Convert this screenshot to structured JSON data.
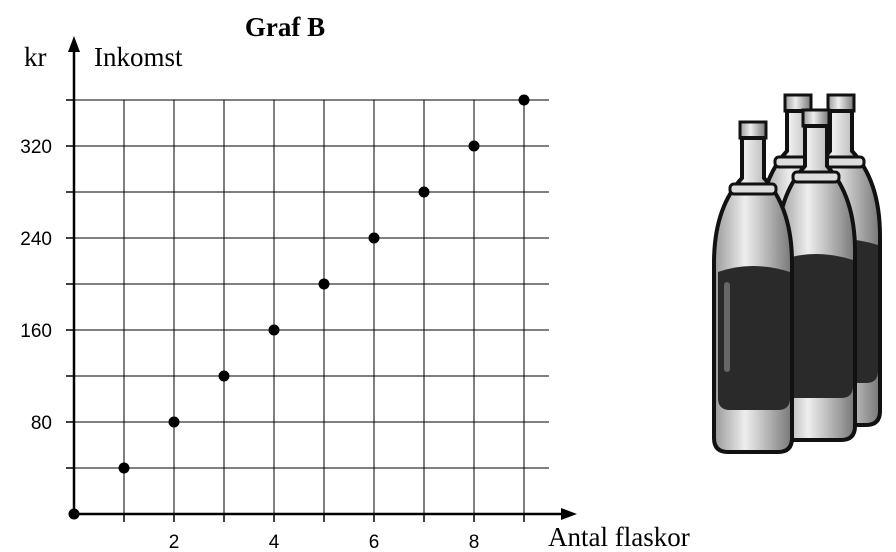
{
  "chart_data": {
    "type": "scatter",
    "title": "Graf B",
    "y_unit": "kr",
    "y_label": "Inkomst",
    "x_label": "Antal flaskor",
    "x": [
      0,
      1,
      2,
      3,
      4,
      5,
      6,
      7,
      8,
      9
    ],
    "series": [
      {
        "color": "#000000",
        "values": [
          0,
          40,
          80,
          120,
          160,
          200,
          240,
          280,
          320,
          360
        ]
      }
    ],
    "xlim": [
      0,
      9.5
    ],
    "ylim": [
      0,
      400
    ],
    "xticks": [
      2,
      4,
      6,
      8
    ],
    "yticks": [
      80,
      160,
      240,
      320
    ],
    "xminor": [
      1,
      3,
      5,
      7,
      9
    ],
    "yminor": [
      40,
      120,
      200,
      280,
      360
    ],
    "grid": true
  }
}
